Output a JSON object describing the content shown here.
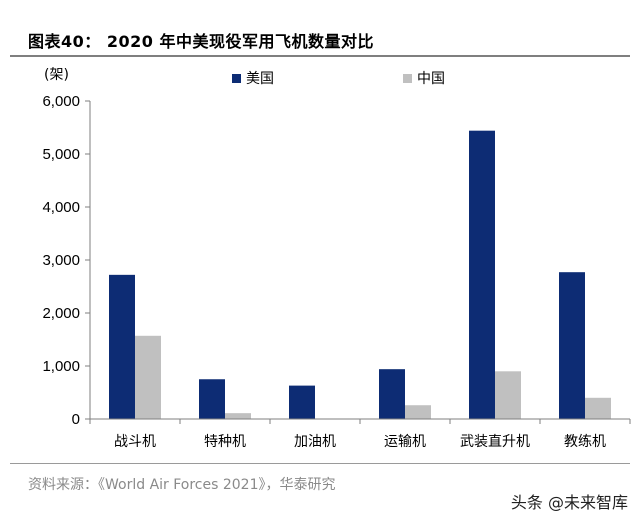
{
  "header": {
    "title": "图表40：   2020 年中美现役军用飞机数量对比"
  },
  "footer": {
    "source": "资料来源：《World Air Forces 2021》，华泰研究",
    "watermark": "头条 @未来智库"
  },
  "colors": {
    "usa": "#0d2c74",
    "china": "#c0c0c0"
  },
  "chart_data": {
    "type": "bar",
    "unit": "(架)",
    "categories": [
      "战斗机",
      "特种机",
      "加油机",
      "运输机",
      "武装直升机",
      "教练机"
    ],
    "series": [
      {
        "name": "美国",
        "values": [
          2720,
          750,
          630,
          940,
          5440,
          2770
        ]
      },
      {
        "name": "中国",
        "values": [
          1570,
          110,
          0,
          260,
          900,
          400
        ]
      }
    ],
    "ylim": [
      0,
      6000
    ],
    "yticks": [
      0,
      1000,
      2000,
      3000,
      4000,
      5000,
      6000
    ],
    "ytick_labels": [
      "0",
      "1,000",
      "2,000",
      "3,000",
      "4,000",
      "5,000",
      "6,000"
    ],
    "legend": "top",
    "grid": false
  }
}
